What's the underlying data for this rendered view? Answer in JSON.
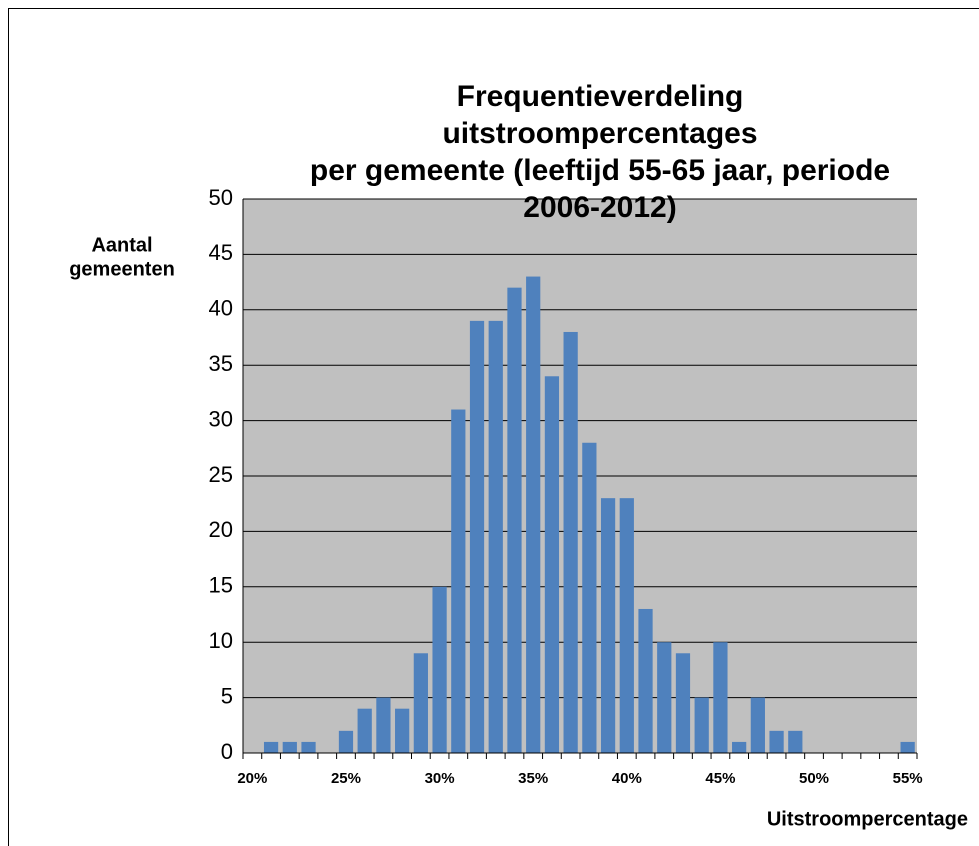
{
  "chart_data": {
    "type": "bar",
    "title": [
      "Frequentieverdeling",
      "uitstroompercentages",
      "per gemeente (leeftijd 55-65 jaar, periode",
      "2006-2012)"
    ],
    "y_label": [
      "Aantal",
      "gemeenten"
    ],
    "x_label": "Uitstroompercentage",
    "categories": [
      "20%",
      null,
      null,
      null,
      null,
      "25%",
      null,
      null,
      null,
      null,
      "30%",
      null,
      null,
      null,
      null,
      "35%",
      null,
      null,
      null,
      null,
      "40%",
      null,
      null,
      null,
      null,
      "45%",
      null,
      null,
      null,
      null,
      "50%",
      null,
      null,
      null,
      null,
      "55%"
    ],
    "values": [
      0,
      1,
      1,
      1,
      0,
      2,
      4,
      5,
      4,
      9,
      15,
      31,
      39,
      39,
      42,
      43,
      34,
      38,
      28,
      23,
      23,
      13,
      10,
      9,
      5,
      10,
      1,
      5,
      2,
      2,
      0,
      0,
      0,
      0,
      0,
      1
    ],
    "color": "#4f81bd",
    "ylim": [
      0,
      50
    ],
    "yticks": [
      0,
      5,
      10,
      15,
      20,
      25,
      30,
      35,
      40,
      45,
      50
    ],
    "grid": true
  }
}
